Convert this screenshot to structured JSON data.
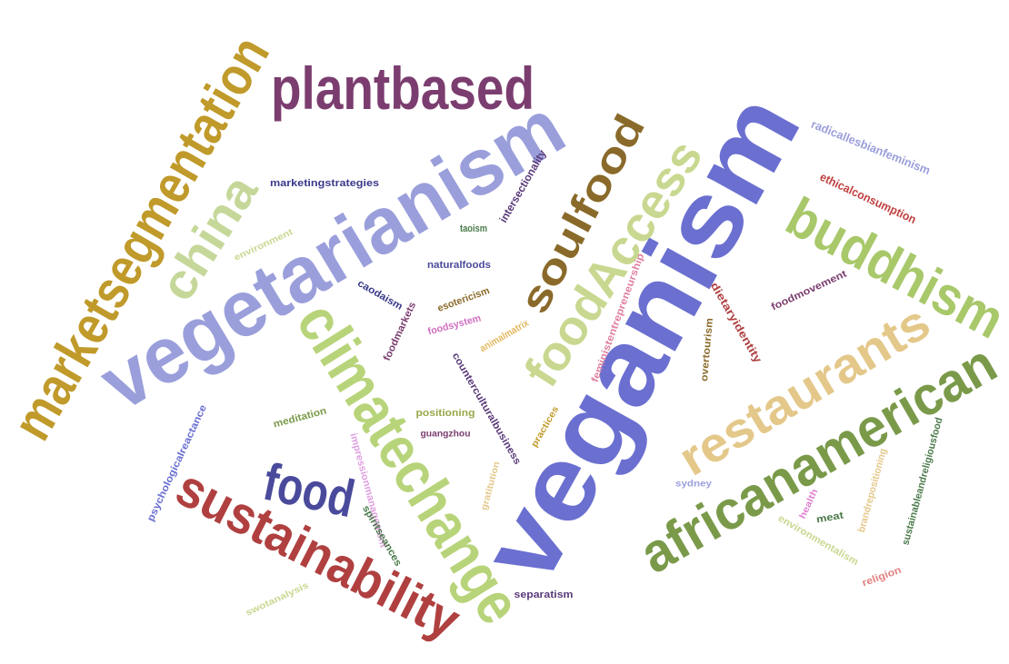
{
  "words": [
    {
      "text": "plantbased",
      "color": "#7b3d6f"
    },
    {
      "text": "marketsegmentation",
      "color": "#c09a2a"
    },
    {
      "text": "vegetarianism",
      "color": "#9a9fdb"
    },
    {
      "text": "china",
      "color": "#c5d89a"
    },
    {
      "text": "veganism",
      "color": "#6a6fd0"
    },
    {
      "text": "climatechange",
      "color": "#b8d47a"
    },
    {
      "text": "sustainability",
      "color": "#b04040"
    },
    {
      "text": "food",
      "color": "#4a4a9c"
    },
    {
      "text": "soulfood",
      "color": "#8a6a2a"
    },
    {
      "text": "foodAccess",
      "color": "#c8d890"
    },
    {
      "text": "buddhism",
      "color": "#a8c86a"
    },
    {
      "text": "restaurants",
      "color": "#e4c88a"
    },
    {
      "text": "africanamerican",
      "color": "#7a9a4a"
    },
    {
      "text": "radicallesbianfeminism",
      "color": "#9a9fdb"
    },
    {
      "text": "ethicalconsumption",
      "color": "#c04040"
    },
    {
      "text": "marketingstrategies",
      "color": "#3a3a8a"
    },
    {
      "text": "intersectionality",
      "color": "#5a3a7a"
    },
    {
      "text": "taoism",
      "color": "#4a7a4a"
    },
    {
      "text": "naturalfoods",
      "color": "#4a4a9a"
    },
    {
      "text": "environment",
      "color": "#c8d890"
    },
    {
      "text": "caodaism",
      "color": "#3a3a8a"
    },
    {
      "text": "esotericism",
      "color": "#8a6a2a"
    },
    {
      "text": "foodmarkets",
      "color": "#7b3d6f"
    },
    {
      "text": "foodsystem",
      "color": "#d070c0"
    },
    {
      "text": "animalmatrix",
      "color": "#e4b860"
    },
    {
      "text": "feministentrepreneurship",
      "color": "#e080a0"
    },
    {
      "text": "dietaryidentity",
      "color": "#b04040"
    },
    {
      "text": "foodmovement",
      "color": "#7b3d6f"
    },
    {
      "text": "overtourism",
      "color": "#8a6a2a"
    },
    {
      "text": "counterculturalbusiness",
      "color": "#5a3a7a"
    },
    {
      "text": "positioning",
      "color": "#9aa84a"
    },
    {
      "text": "guangzhou",
      "color": "#7b3d6f"
    },
    {
      "text": "practices",
      "color": "#c09a2a"
    },
    {
      "text": "meditation",
      "color": "#7a9a4a"
    },
    {
      "text": "psychologicalreactance",
      "color": "#6a6fd0"
    },
    {
      "text": "impressionmanagement",
      "color": "#e0a0e0"
    },
    {
      "text": "spiritseances",
      "color": "#4a7a4a"
    },
    {
      "text": "gratitution",
      "color": "#e4c88a"
    },
    {
      "text": "sydney",
      "color": "#9a9fdb"
    },
    {
      "text": "health",
      "color": "#e080d0"
    },
    {
      "text": "meat",
      "color": "#4a7a4a"
    },
    {
      "text": "brandrepositioning",
      "color": "#e4c88a"
    },
    {
      "text": "sustainableandreligiousfood",
      "color": "#4a7a4a"
    },
    {
      "text": "environmentalism",
      "color": "#c8d890"
    },
    {
      "text": "religion",
      "color": "#e08080"
    },
    {
      "text": "separatism",
      "color": "#5a3a7a"
    },
    {
      "text": "swotanalysis",
      "color": "#c8d890"
    }
  ]
}
